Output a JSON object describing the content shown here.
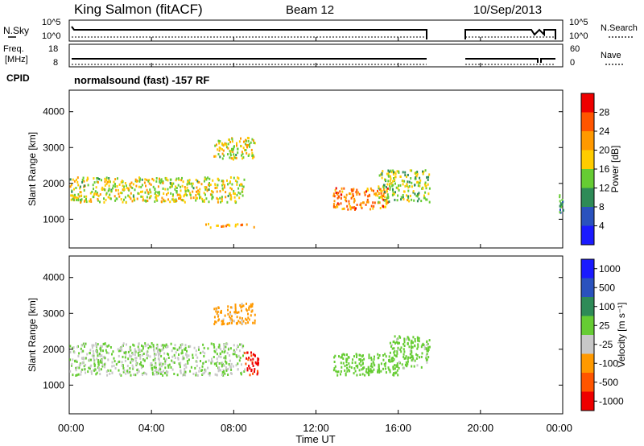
{
  "header": {
    "station": "King Salmon (fitACF)",
    "beam": "Beam 12",
    "date": "10/Sep/2013"
  },
  "noise_panel": {
    "left_label": "N.Sky",
    "left_ticks": [
      "10^5",
      "10^0"
    ],
    "right_label": "N.Search",
    "right_ticks": [
      "10^5",
      "10^0"
    ]
  },
  "freq_panel": {
    "left_label_1": "Freq.",
    "left_label_2": "[MHz]",
    "left_ticks": [
      "18",
      "8"
    ],
    "right_label": "Nave",
    "right_ticks": [
      "60",
      "0"
    ]
  },
  "cpid": {
    "label": "CPID",
    "value": "normalsound (fast) -157 RF"
  },
  "chart_data": [
    {
      "type": "heatmap",
      "title": "",
      "xlabel": "Time UT",
      "ylabel": "Slant Range [km]",
      "x_ticks": [
        "00:00",
        "04:00",
        "08:00",
        "12:00",
        "16:00",
        "20:00",
        "00:00"
      ],
      "y_ticks": [
        "1000",
        "2000",
        "3000",
        "4000"
      ],
      "ylim": [
        200,
        4600
      ],
      "colorbar": {
        "label": "Power [dB]",
        "ticks": [
          "4",
          "8",
          "12",
          "16",
          "20",
          "24",
          "28"
        ],
        "range": [
          0,
          30
        ],
        "colors": [
          "#1a1aff",
          "#2a52be",
          "#2e8b57",
          "#66cc33",
          "#ffcc00",
          "#ff9900",
          "#ff5500",
          "#ee0000"
        ]
      },
      "features": [
        {
          "name": "main band",
          "t_start": 0.0,
          "t_end": 8.5,
          "range_start": 1500,
          "range_end": 2200,
          "level": 16
        },
        {
          "name": "lower band",
          "t_start": 6.5,
          "t_end": 9.0,
          "range_start": 800,
          "range_end": 900,
          "level": 20
        },
        {
          "name": "upper streak",
          "t_start": 7.0,
          "t_end": 9.0,
          "range_start": 2700,
          "range_end": 3300,
          "level": 16
        },
        {
          "name": "midday patch",
          "t_start": 12.8,
          "t_end": 15.5,
          "range_start": 1300,
          "range_end": 1900,
          "level": 22
        },
        {
          "name": "afternoon patch",
          "t_start": 15.0,
          "t_end": 17.5,
          "range_start": 1500,
          "range_end": 2400,
          "level": 14
        },
        {
          "name": "late patch",
          "t_start": 23.8,
          "t_end": 24.0,
          "range_start": 1200,
          "range_end": 1700,
          "level": 10
        }
      ]
    },
    {
      "type": "heatmap",
      "title": "",
      "xlabel": "Time UT",
      "ylabel": "Slant Range [km]",
      "x_ticks": [
        "00:00",
        "04:00",
        "08:00",
        "12:00",
        "16:00",
        "20:00",
        "00:00"
      ],
      "y_ticks": [
        "1000",
        "2000",
        "3000",
        "4000"
      ],
      "ylim": [
        200,
        4600
      ],
      "colorbar": {
        "label": "Velocity [m s⁻¹]",
        "ticks": [
          "1000",
          "500",
          "100",
          "25",
          "-25",
          "-100",
          "-500",
          "-1000"
        ],
        "range": [
          -1000,
          1000
        ],
        "colors": [
          "#1a1aff",
          "#2a52be",
          "#2e8b57",
          "#66cc33",
          "#c8c8c8",
          "#ff9900",
          "#ff5500",
          "#ee0000"
        ]
      },
      "features": [
        {
          "name": "main band",
          "t_start": 0.0,
          "t_end": 8.5,
          "range_start": 1300,
          "range_end": 2200,
          "level": 0
        },
        {
          "name": "upper streak",
          "t_start": 7.0,
          "t_end": 9.0,
          "range_start": 2700,
          "range_end": 3300,
          "level": -300
        },
        {
          "name": "receding patch",
          "t_start": 8.5,
          "t_end": 9.2,
          "range_start": 1300,
          "range_end": 2000,
          "level": -800
        },
        {
          "name": "midday patch",
          "t_start": 12.8,
          "t_end": 16.0,
          "range_start": 1300,
          "range_end": 1900,
          "level": 100
        },
        {
          "name": "afternoon patch",
          "t_start": 15.5,
          "t_end": 17.5,
          "range_start": 1500,
          "range_end": 2400,
          "level": 60
        }
      ]
    }
  ]
}
